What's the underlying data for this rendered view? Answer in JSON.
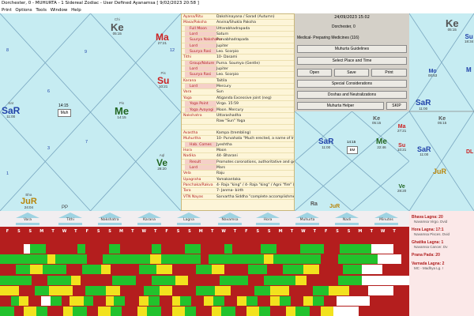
{
  "window": {
    "title": "Dorchester, 0  -  MUHURTA  - 1 Sidereal Zodiac  -  User Defined Ayanamsa  [ 9/02/2023 20:58 ]"
  },
  "menu": [
    "Print",
    "Options",
    "Tools",
    "Window",
    "Help"
  ],
  "left_chart": {
    "planets": [
      {
        "name": "Ke",
        "deg": "05:15",
        "abbr": "Chi",
        "color": "#555555"
      },
      {
        "name": "Ma",
        "deg": "27:21",
        "abbr": "Mar",
        "color": "#cc2222"
      },
      {
        "name": "Su",
        "deg": "10:21",
        "abbr": "Pis",
        "color": "#cc2222"
      },
      {
        "name": "SaR",
        "deg": "11:00",
        "abbr": "Sat",
        "color": "#2244aa"
      },
      {
        "name": "Me",
        "deg": "14:15",
        "abbr": "Pis",
        "color": "#226622"
      },
      {
        "name": "Ve",
        "deg": "28:20",
        "abbr": "Aql",
        "color": "#226622"
      },
      {
        "name": "JuR",
        "deg": "24:04",
        "abbr": "Bha",
        "color": "#b8860b"
      }
    ],
    "center_label": "Muh",
    "center_time": "14:15",
    "extra_label": "PP",
    "house_numbers": [
      "9",
      "8",
      "6",
      "7",
      "12",
      "1",
      "3"
    ]
  },
  "panel": {
    "rows": [
      {
        "k": "Ayana/Ritu",
        "v": "Dakshinayana / Sarad (Autumn)",
        "sub": false
      },
      {
        "k": "Masa/Paksha",
        "v": "Asvina/Shukla Paksha",
        "sub": false
      },
      {
        "k": "Full Moon",
        "v": "Uttarabhadrapada",
        "sub": true
      },
      {
        "k": "Lord",
        "v": "Saturn",
        "sub": true
      },
      {
        "k": "Suurya Nakshatra",
        "v": "Purvabhadrapada",
        "sub": true
      },
      {
        "k": "Lord",
        "v": "Jupiter",
        "sub": true
      },
      {
        "k": "Suurya Rasi",
        "v": "Leo. Scorpio",
        "sub": true
      },
      {
        "k": "Tithi",
        "v": "10- Dasami",
        "sub": false
      },
      {
        "k": "Group/Nature",
        "v": "Purna. Soumya (Gentle)",
        "sub": true
      },
      {
        "k": "Lord",
        "v": "Jupiter",
        "sub": true
      },
      {
        "k": "Suurya Rasi",
        "v": "Leo. Scorpio",
        "sub": true
      },
      {
        "k": "Karana",
        "v": "Taitila",
        "sub": false
      },
      {
        "k": "Lord",
        "v": "Mercury",
        "sub": true
      },
      {
        "k": "Vara",
        "v": "Sun",
        "sub": false
      },
      {
        "k": "Yoga",
        "v": "Atiganda Excessive joint (neg)",
        "sub": false
      },
      {
        "k": "Yoga Point",
        "v": "Virgo. 15:59",
        "sub": true
      },
      {
        "k": "Yoga Avayogi",
        "v": "Moon. Mercury",
        "sub": true
      },
      {
        "k": "Nakshatra",
        "v": "Uttarashadha",
        "sub": false
      },
      {
        "k": "",
        "v": "Raw \"Sun\" Yoga",
        "sub": false
      },
      {
        "k": "",
        "v": "",
        "sub": false
      },
      {
        "k": "Avastha",
        "v": "Kampa (trembling)",
        "sub": false
      },
      {
        "k": "Muhurtha",
        "v": "10- Purvahata \"Much erected, a name of Indra\" (neg)",
        "sub": false
      },
      {
        "k": "Hab. Comes",
        "v": "Jyeshtha",
        "sub": true
      },
      {
        "k": "Hora",
        "v": "Moon",
        "sub": false
      },
      {
        "k": "Nadika",
        "v": "44- Bharani",
        "sub": false
      },
      {
        "k": "Result",
        "v": "Promotes coronations, authoritative and government work.",
        "sub": true
      },
      {
        "k": "Lord",
        "v": "Mars",
        "sub": true
      },
      {
        "k": "Vela",
        "v": "Raju",
        "sub": false
      },
      {
        "k": "Upagraha",
        "v": "Yamakantaka",
        "sub": false
      },
      {
        "k": "Panchaka/Rakva",
        "v": "4- Raja \"king\" / 4- Raja \"king\" / Agni \"fire\" (Surya)",
        "sub": false
      },
      {
        "k": "Tara",
        "v": "7- Janma- birth",
        "sub": false
      },
      {
        "k": "VTN Nayas",
        "v": "Sarvartha Siddha \"complete accomplishment\" VN Yoga",
        "sub": false
      }
    ]
  },
  "controls": {
    "date": "24/09/2023  15:02",
    "place": "Dorchester, 0",
    "medical": "Medical- Preparing Medicines (116)",
    "guidelines_btn": "Muhurta Guidelines",
    "place_time_btn": "Select Place and Time",
    "open_btn": "Open",
    "save_btn": "Save",
    "print_btn": "Print",
    "special_btn": "Special Considerations",
    "doshas_btn": "Doshas and Neutralizations",
    "helper_btn": "Muhurta Helper",
    "skip_btn": "SKIP"
  },
  "right_chart": {
    "planets": [
      {
        "name": "Ke",
        "deg": "05:15",
        "color": "#555555"
      },
      {
        "name": "Ma",
        "deg": "27:21",
        "color": "#cc2222"
      },
      {
        "name": "Su",
        "deg": "10:21",
        "color": "#cc2222"
      },
      {
        "name": "SaR",
        "deg": "11:00",
        "color": "#2244aa"
      },
      {
        "name": "Me",
        "deg": "22:46",
        "color": "#226622"
      },
      {
        "name": "Ve",
        "deg": "28:20",
        "color": "#226622"
      },
      {
        "name": "Ra",
        "deg": "",
        "color": "#555555"
      },
      {
        "name": "JuR",
        "deg": "",
        "color": "#b8860b"
      }
    ],
    "center_label": "BM",
    "center_time": "14:15"
  },
  "far_chart": {
    "planets": [
      {
        "name": "Ke",
        "deg": "05:15",
        "color": "#555555"
      },
      {
        "name": "Mo",
        "deg": "00:53",
        "color": "#2244aa"
      },
      {
        "name": "SaR",
        "deg": "11:00",
        "color": "#2244aa"
      },
      {
        "name": "Ke",
        "deg": "05:15",
        "color": "#555555"
      },
      {
        "name": "SaR",
        "deg": "11:00",
        "color": "#2244aa"
      },
      {
        "name": "JuR",
        "deg": "",
        "color": "#b8860b"
      }
    ],
    "upper_right": [
      {
        "name": "Su",
        "deg": "18:34",
        "color": "#2244aa"
      },
      {
        "name": "M",
        "deg": "",
        "color": "#2244aa"
      }
    ],
    "dl_label": "DL"
  },
  "nav": [
    "Vara",
    "Tithi",
    "Nakshatra",
    "Karana",
    "Lagna",
    "Navamsa",
    "Hora",
    "Muhurta",
    "Nadi",
    "Minutes"
  ],
  "days": [
    "F",
    "S",
    "S",
    "M",
    "T",
    "W",
    "T",
    "F",
    "S",
    "S",
    "M",
    "T",
    "W",
    "T",
    "F",
    "S",
    "S",
    "M",
    "T",
    "W",
    "T",
    "F",
    "S",
    "S",
    "M",
    "T",
    "W",
    "T",
    "F",
    "S",
    "S",
    "M",
    "T",
    "W",
    "T"
  ],
  "lagna_panel": [
    {
      "title": "Bhava Lagna: 20",
      "sub": "Navamsa Virgo. Dvid"
    },
    {
      "title": "Hora Lagna: 17:1",
      "sub": "Navamsa Pisces. Dvid"
    },
    {
      "title": "Ghatika Lagna: 1",
      "sub": "Navamsa Cancer. Dv"
    },
    {
      "title": "Prana Pada: 20",
      "sub": ""
    },
    {
      "title": "Varnada Lagna: 2",
      "sub": ""
    },
    {
      "title": "",
      "sub": "MC - Madhya Lg. !"
    }
  ],
  "colors": {
    "chart_bg": "#c6ecf2",
    "grid_red": "#b41e1e",
    "grid_green": "#22c22c",
    "grid_yellow": "#f2e21e",
    "panel_bg": "#fdf5d8"
  }
}
